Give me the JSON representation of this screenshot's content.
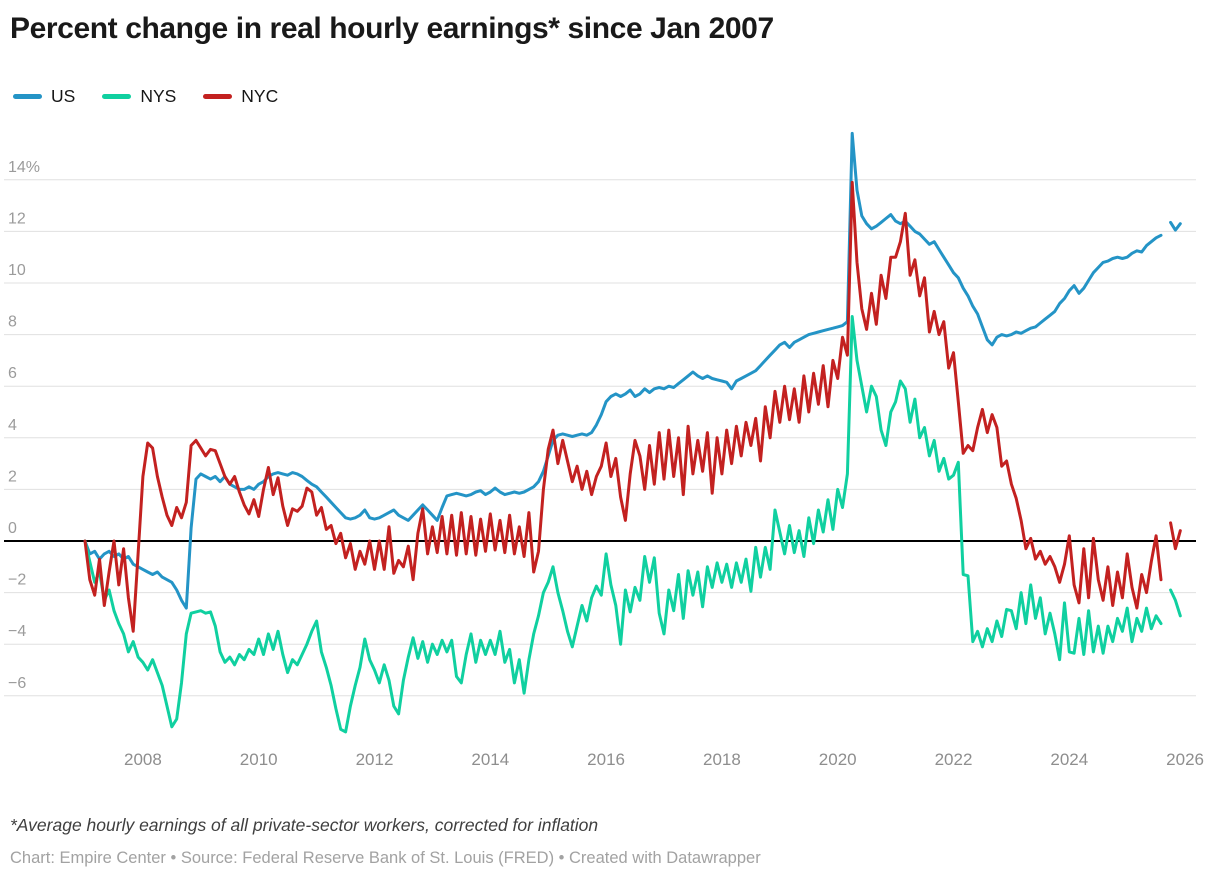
{
  "header": {
    "title": "Percent change in real hourly earnings* since Jan 2007"
  },
  "footnote": "*Average hourly earnings of all private-sector workers, corrected for inflation",
  "credit": "Chart: Empire Center • Source: Federal Reserve Bank of St. Louis (FRED) • Created with Datawrapper",
  "colors": {
    "us": "#2494C6",
    "nys": "#10D0A0",
    "nyc": "#C32120",
    "gridline": "#e0e0e0",
    "zero_line": "#000000",
    "axis_label": "#9b9b9b"
  },
  "chart_data": {
    "type": "line",
    "title": "Percent change in real hourly earnings* since Jan 2007",
    "xlabel": "",
    "ylabel": "",
    "legend_position": "top-left",
    "grid": "horizontal",
    "baseline": 0,
    "xlim": [
      2006.9,
      2026.5
    ],
    "ylim": [
      -8,
      16
    ],
    "x_axis": {
      "ticks": [
        2008,
        2010,
        2012,
        2014,
        2016,
        2018,
        2020,
        2022,
        2024,
        2026
      ],
      "tick_labels": [
        "2008",
        "2010",
        "2012",
        "2014",
        "2016",
        "2018",
        "2020",
        "2022",
        "2024",
        "2026"
      ]
    },
    "y_axis": {
      "ticks": [
        {
          "value": 14,
          "label": "14%"
        },
        {
          "value": 12,
          "label": "12"
        },
        {
          "value": 10,
          "label": "10"
        },
        {
          "value": 8,
          "label": "8"
        },
        {
          "value": 6,
          "label": "6"
        },
        {
          "value": 4,
          "label": "4"
        },
        {
          "value": 2,
          "label": "2"
        },
        {
          "value": 0,
          "label": "0"
        },
        {
          "value": -2,
          "label": "−2"
        },
        {
          "value": -4,
          "label": "−4"
        },
        {
          "value": -6,
          "label": "−6"
        }
      ]
    },
    "start_month": "2007-01",
    "frequency": "monthly",
    "note": "null value = gap month before final detached points",
    "series": [
      {
        "name": "US",
        "color": "#2494C6",
        "values": [
          0,
          -0.5,
          -0.4,
          -0.7,
          -0.5,
          -0.4,
          -0.6,
          -0.5,
          -0.7,
          -0.6,
          -0.9,
          -1.0,
          -1.1,
          -1.2,
          -1.3,
          -1.2,
          -1.4,
          -1.5,
          -1.6,
          -1.9,
          -2.3,
          -2.6,
          0.5,
          2.4,
          2.6,
          2.5,
          2.4,
          2.5,
          2.3,
          2.5,
          2.2,
          2.1,
          2.0,
          2.0,
          2.1,
          2.0,
          2.2,
          2.3,
          2.5,
          2.6,
          2.65,
          2.6,
          2.55,
          2.65,
          2.6,
          2.5,
          2.35,
          2.2,
          2.1,
          1.9,
          1.7,
          1.5,
          1.3,
          1.1,
          0.9,
          0.85,
          0.9,
          1.0,
          1.2,
          0.9,
          0.85,
          0.9,
          1.0,
          1.1,
          1.2,
          1.0,
          0.9,
          0.8,
          1.0,
          1.2,
          1.4,
          1.2,
          1.0,
          0.8,
          1.3,
          1.75,
          1.8,
          1.85,
          1.8,
          1.75,
          1.8,
          1.9,
          1.95,
          1.8,
          1.9,
          2.05,
          1.9,
          1.8,
          1.85,
          1.9,
          1.85,
          1.9,
          2.0,
          2.1,
          2.3,
          2.7,
          3.3,
          3.9,
          4.1,
          4.15,
          4.1,
          4.05,
          4.1,
          4.15,
          4.1,
          4.2,
          4.5,
          4.9,
          5.4,
          5.6,
          5.7,
          5.6,
          5.7,
          5.85,
          5.6,
          5.7,
          5.9,
          5.75,
          5.9,
          5.95,
          5.9,
          6.0,
          5.95,
          6.1,
          6.25,
          6.4,
          6.55,
          6.4,
          6.3,
          6.4,
          6.3,
          6.25,
          6.2,
          6.15,
          5.9,
          6.2,
          6.3,
          6.4,
          6.5,
          6.6,
          6.8,
          7.0,
          7.2,
          7.4,
          7.6,
          7.7,
          7.5,
          7.7,
          7.8,
          7.9,
          8.0,
          8.05,
          8.1,
          8.15,
          8.2,
          8.25,
          8.3,
          8.35,
          8.5,
          15.8,
          13.6,
          12.6,
          12.3,
          12.1,
          12.2,
          12.35,
          12.5,
          12.65,
          12.4,
          12.3,
          12.4,
          12.2,
          12.0,
          11.9,
          11.7,
          11.5,
          11.6,
          11.3,
          11.0,
          10.7,
          10.4,
          10.2,
          9.8,
          9.5,
          9.1,
          8.8,
          8.3,
          7.8,
          7.6,
          7.9,
          8.0,
          7.95,
          8.0,
          8.1,
          8.05,
          8.15,
          8.25,
          8.3,
          8.45,
          8.6,
          8.75,
          8.9,
          9.2,
          9.4,
          9.7,
          9.9,
          9.6,
          9.8,
          10.1,
          10.4,
          10.6,
          10.8,
          10.85,
          10.95,
          11.0,
          10.95,
          11.0,
          11.15,
          11.25,
          11.2,
          11.45,
          11.6,
          11.75,
          11.85,
          null,
          12.35,
          12.05,
          12.3
        ]
      },
      {
        "name": "NYS",
        "color": "#10D0A0",
        "values": [
          0,
          -0.8,
          -1.6,
          -1.2,
          -2.3,
          -1.9,
          -2.7,
          -3.2,
          -3.6,
          -4.3,
          -3.9,
          -4.5,
          -4.7,
          -5.0,
          -4.6,
          -5.1,
          -5.6,
          -6.4,
          -7.2,
          -6.9,
          -5.5,
          -3.6,
          -2.8,
          -2.75,
          -2.7,
          -2.8,
          -2.75,
          -3.3,
          -4.3,
          -4.7,
          -4.5,
          -4.8,
          -4.4,
          -4.6,
          -4.2,
          -4.4,
          -3.8,
          -4.4,
          -3.6,
          -4.2,
          -3.5,
          -4.4,
          -5.1,
          -4.6,
          -4.8,
          -4.4,
          -4.0,
          -3.5,
          -3.1,
          -4.3,
          -4.9,
          -5.6,
          -6.5,
          -7.3,
          -7.4,
          -6.4,
          -5.6,
          -4.9,
          -3.8,
          -4.6,
          -5.0,
          -5.5,
          -4.8,
          -5.4,
          -6.4,
          -6.7,
          -5.4,
          -4.5,
          -3.75,
          -4.55,
          -3.9,
          -4.7,
          -4.0,
          -4.4,
          -3.85,
          -4.3,
          -3.85,
          -5.25,
          -5.5,
          -4.4,
          -3.6,
          -4.7,
          -3.85,
          -4.4,
          -3.85,
          -4.4,
          -3.5,
          -4.7,
          -4.2,
          -5.5,
          -4.6,
          -5.9,
          -4.6,
          -3.6,
          -2.9,
          -2.0,
          -1.6,
          -1.0,
          -2.0,
          -2.7,
          -3.5,
          -4.1,
          -3.3,
          -2.5,
          -3.1,
          -2.2,
          -1.75,
          -2.1,
          -0.5,
          -1.7,
          -2.5,
          -4.0,
          -1.9,
          -2.75,
          -1.8,
          -2.3,
          -0.6,
          -1.6,
          -0.65,
          -2.8,
          -3.6,
          -1.9,
          -2.7,
          -1.3,
          -3.0,
          -1.15,
          -2.1,
          -1.2,
          -2.55,
          -1.0,
          -1.8,
          -0.85,
          -1.6,
          -0.9,
          -1.8,
          -0.85,
          -1.6,
          -0.7,
          -1.95,
          -0.25,
          -1.4,
          -0.25,
          -1.1,
          1.2,
          0.35,
          -0.5,
          0.6,
          -0.45,
          0.4,
          -0.6,
          0.9,
          -0.1,
          1.2,
          0.35,
          1.6,
          0.45,
          2.0,
          1.3,
          2.6,
          8.7,
          7.0,
          6.0,
          5.0,
          6.0,
          5.6,
          4.3,
          3.7,
          5.0,
          5.4,
          6.2,
          5.9,
          4.6,
          5.5,
          4.0,
          4.4,
          3.3,
          3.9,
          2.7,
          3.2,
          2.4,
          2.55,
          3.05,
          -1.3,
          -1.35,
          -3.9,
          -3.5,
          -4.1,
          -3.4,
          -3.9,
          -3.1,
          -3.7,
          -2.65,
          -2.7,
          -3.4,
          -2.0,
          -3.2,
          -1.7,
          -3.0,
          -2.2,
          -3.6,
          -2.8,
          -3.6,
          -4.6,
          -2.4,
          -4.3,
          -4.35,
          -3.0,
          -4.4,
          -2.7,
          -4.3,
          -3.3,
          -4.35,
          -3.3,
          -3.9,
          -3.0,
          -3.5,
          -2.6,
          -3.9,
          -3.0,
          -3.5,
          -2.6,
          -3.4,
          -2.9,
          -3.2,
          null,
          -1.9,
          -2.3,
          -2.9
        ]
      },
      {
        "name": "NYC",
        "color": "#C32120",
        "values": [
          0,
          -1.5,
          -2.1,
          -0.7,
          -2.5,
          -1.2,
          0.0,
          -1.7,
          -0.3,
          -2.2,
          -3.5,
          -0.5,
          2.5,
          3.8,
          3.6,
          2.5,
          1.7,
          1.0,
          0.6,
          1.3,
          0.9,
          1.5,
          3.7,
          3.9,
          3.6,
          3.3,
          3.55,
          3.5,
          3.0,
          2.5,
          2.2,
          2.5,
          1.9,
          1.4,
          1.05,
          1.6,
          0.95,
          2.0,
          2.85,
          1.8,
          2.45,
          1.35,
          0.6,
          1.25,
          1.15,
          1.35,
          2.05,
          1.9,
          1.0,
          1.3,
          0.45,
          0.6,
          -0.1,
          0.3,
          -0.65,
          -0.1,
          -1.1,
          -0.4,
          -0.9,
          0.0,
          -1.1,
          0.0,
          -1.1,
          0.55,
          -1.25,
          -0.75,
          -1.0,
          -0.2,
          -1.5,
          0.3,
          1.25,
          -0.5,
          0.55,
          -0.45,
          0.95,
          -0.5,
          1.0,
          -0.55,
          1.1,
          -0.5,
          0.95,
          -0.55,
          0.85,
          -0.4,
          1.05,
          -0.35,
          0.8,
          -0.45,
          1.0,
          -0.5,
          0.55,
          -0.6,
          1.1,
          -1.2,
          -0.4,
          2.0,
          3.55,
          4.3,
          3.0,
          3.9,
          3.1,
          2.3,
          2.9,
          2.0,
          2.7,
          1.8,
          2.5,
          2.9,
          3.8,
          2.5,
          3.2,
          1.7,
          0.8,
          2.6,
          3.9,
          3.3,
          2.0,
          3.7,
          2.2,
          4.2,
          2.4,
          4.3,
          2.5,
          4.0,
          1.8,
          4.45,
          2.6,
          3.9,
          2.7,
          4.2,
          1.85,
          4.0,
          2.6,
          4.3,
          3.0,
          4.45,
          3.3,
          4.6,
          3.7,
          4.75,
          3.1,
          5.2,
          4.0,
          5.8,
          4.6,
          6.0,
          4.7,
          5.9,
          4.6,
          6.4,
          5.0,
          6.5,
          5.3,
          6.8,
          5.2,
          7.0,
          6.3,
          7.9,
          7.2,
          13.9,
          10.8,
          9.0,
          8.2,
          9.6,
          8.4,
          10.3,
          9.4,
          11.0,
          11.0,
          11.6,
          12.7,
          10.3,
          10.9,
          9.5,
          10.2,
          8.1,
          8.9,
          8.0,
          8.5,
          6.7,
          7.3,
          5.4,
          3.4,
          3.7,
          3.5,
          4.4,
          5.1,
          4.2,
          4.9,
          4.4,
          2.9,
          3.1,
          2.2,
          1.65,
          0.8,
          -0.3,
          0.1,
          -0.7,
          -0.4,
          -0.9,
          -0.6,
          -1.0,
          -1.6,
          -0.9,
          0.2,
          -1.7,
          -2.4,
          -0.3,
          -2.2,
          0.1,
          -1.5,
          -2.3,
          -1.0,
          -2.5,
          -1.2,
          -2.2,
          -0.5,
          -1.8,
          -2.6,
          -1.3,
          -2.0,
          -0.8,
          0.2,
          -1.5,
          null,
          0.7,
          -0.3,
          0.4
        ]
      }
    ]
  }
}
